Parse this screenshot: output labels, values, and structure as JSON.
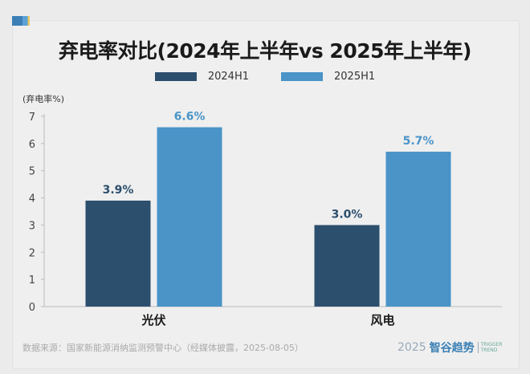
{
  "chart_data": {
    "type": "bar",
    "title": "弃电率对比(2024年上半年vs 2025年上半年)",
    "ylabel": "(弃电率%)",
    "xlabel": "",
    "categories": [
      "光伏",
      "风电"
    ],
    "series": [
      {
        "name": "2024H1",
        "values": [
          3.9,
          3.0
        ],
        "color": "#2c4f6e",
        "labels": [
          "3.9%",
          "3.0%"
        ],
        "label_color": "#2c4f6e"
      },
      {
        "name": "2025H1",
        "values": [
          6.6,
          5.7
        ],
        "color": "#4a94c8",
        "labels": [
          "6.6%",
          "5.7%"
        ],
        "label_color": "#4a94c8"
      }
    ],
    "ylim": [
      0,
      7
    ],
    "yticks": [
      "0",
      "1",
      "2",
      "3",
      "4",
      "5",
      "6",
      "7"
    ],
    "grid": false,
    "legend": "top-center"
  },
  "footer": {
    "source": "数据来源：国家新能源消纳监测预警中心（经媒体披露，2025-08-05）",
    "logo_year": "2025",
    "logo_cn": "智谷趋势",
    "logo_en_1": "TRIGGER",
    "logo_en_2": "TREND"
  }
}
